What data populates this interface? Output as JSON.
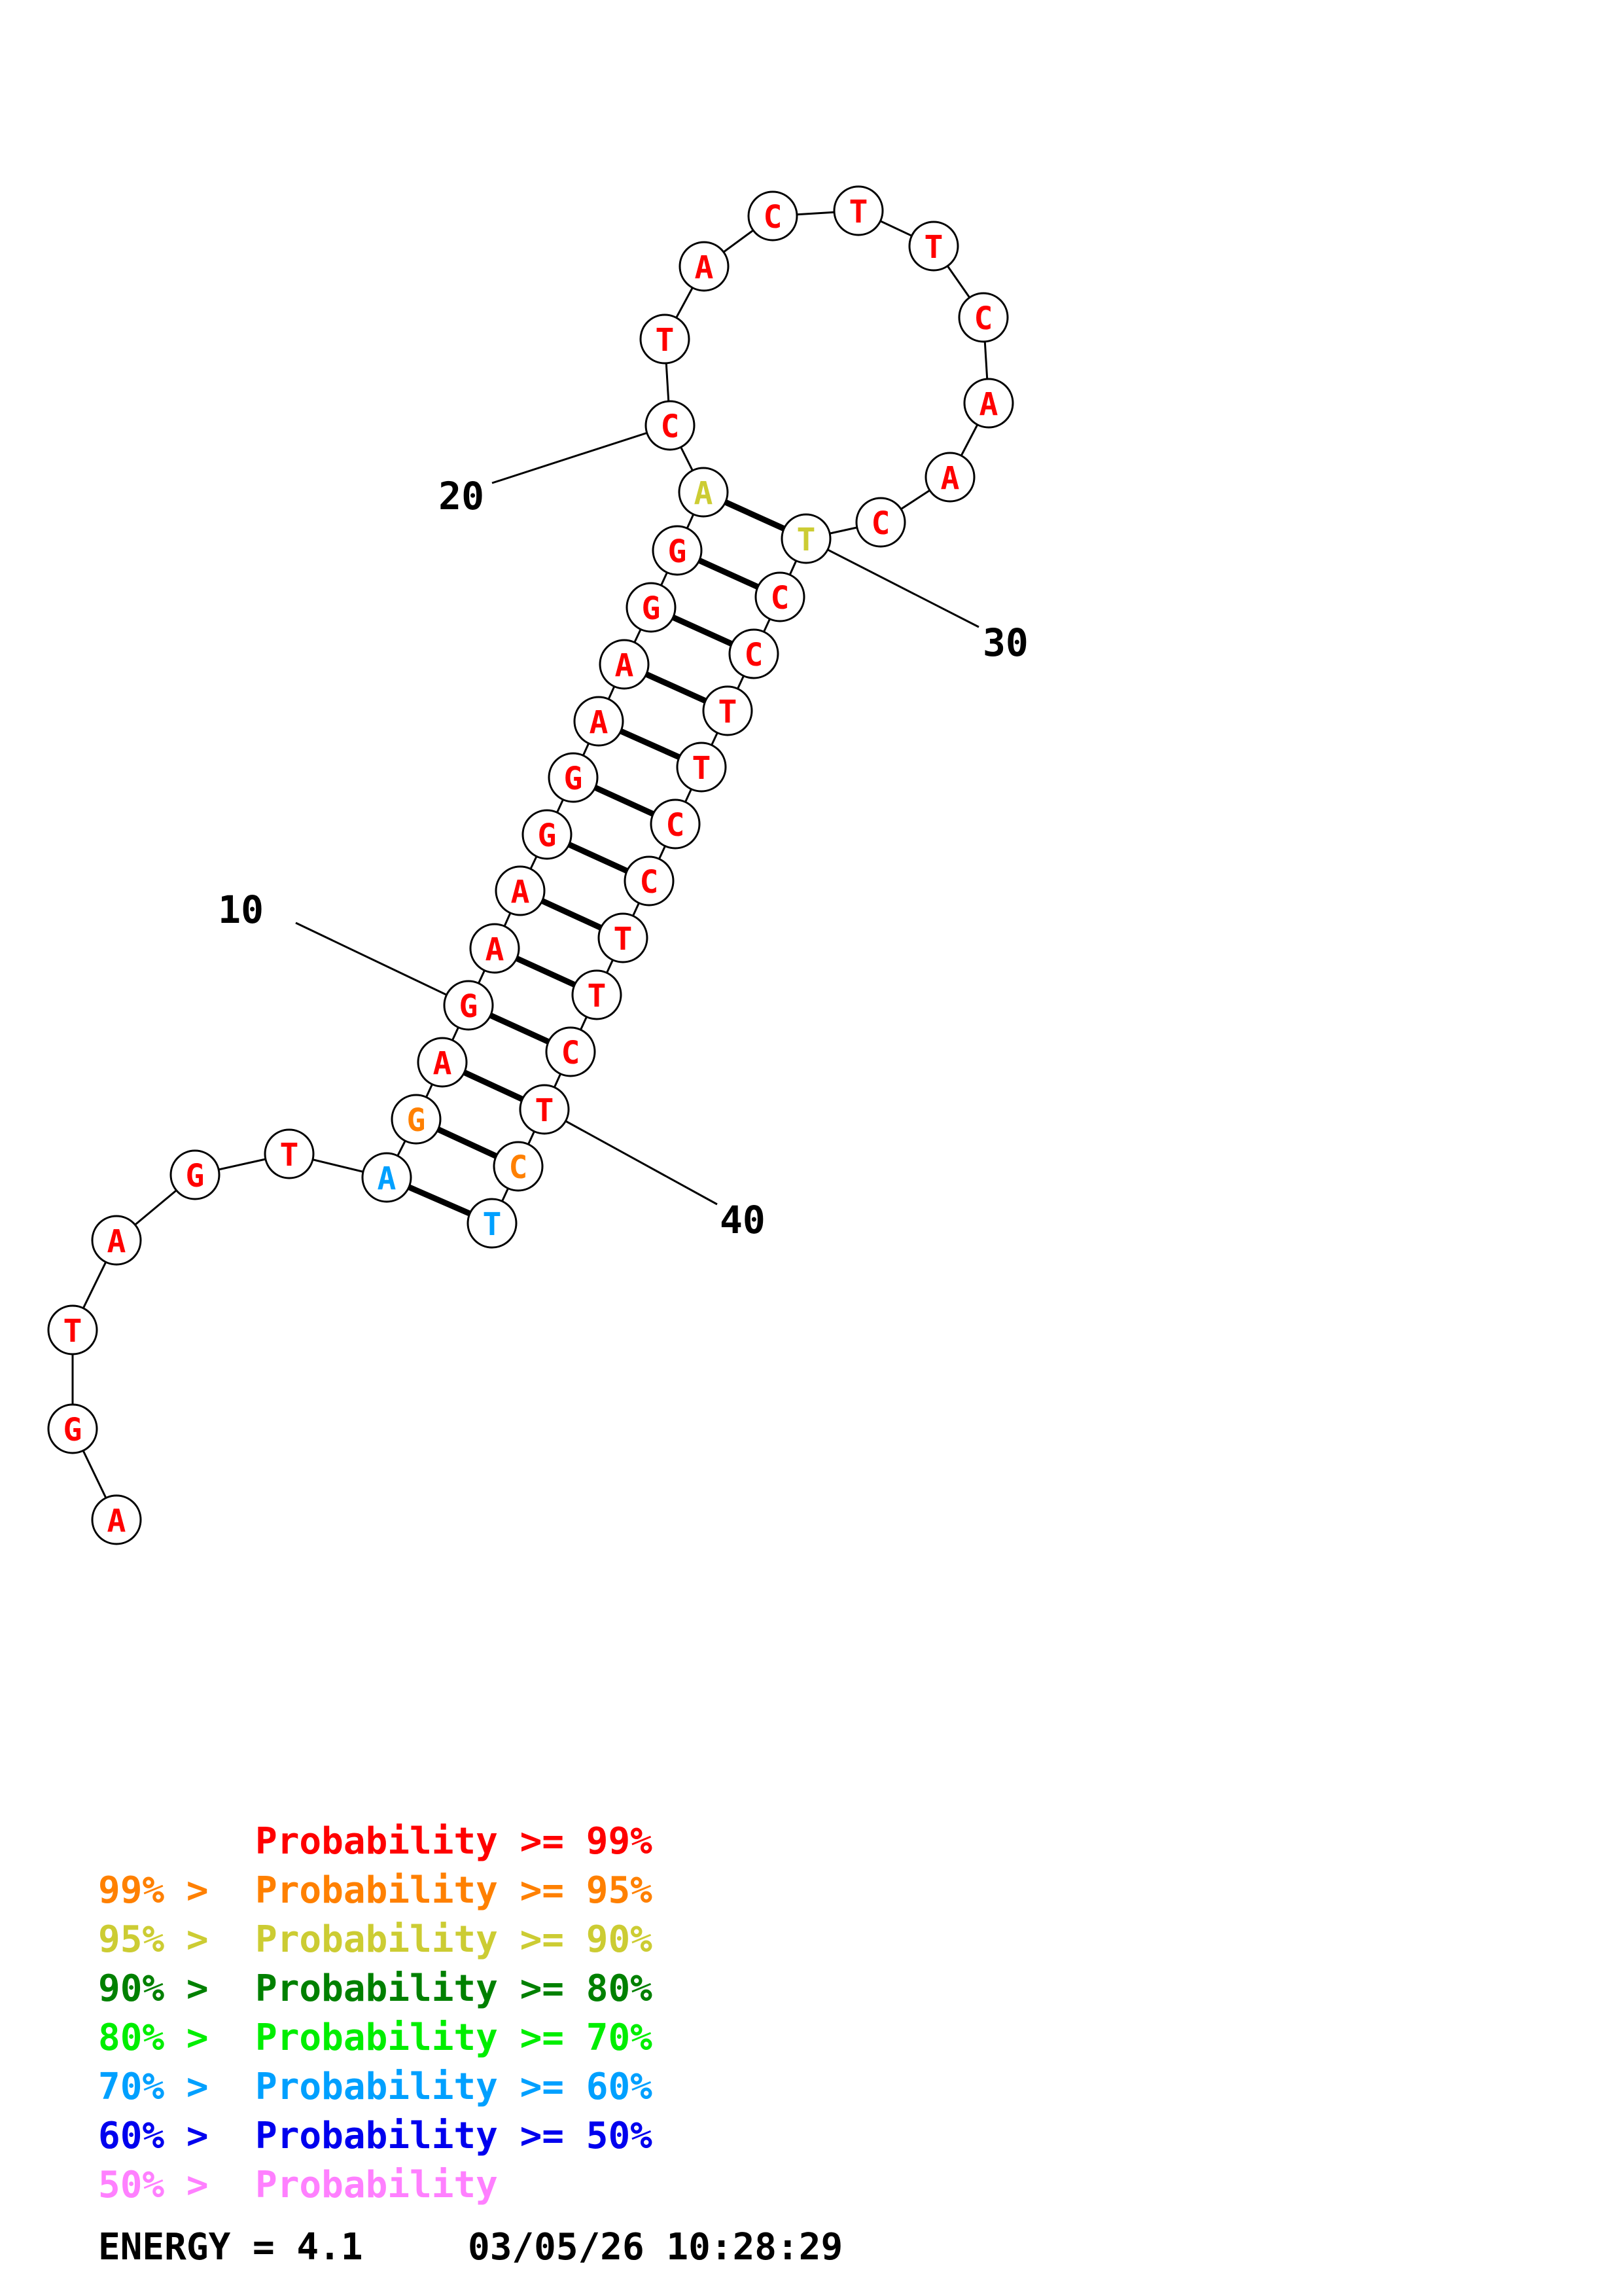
{
  "colors": {
    "p99": "#ff0000",
    "p95": "#ff8000",
    "p90": "#cccc33",
    "p80": "#008000",
    "p70": "#00ee00",
    "p60": "#00a0ff",
    "p50": "#0000ee",
    "plt50": "#ff80ff"
  },
  "sequence": [
    {
      "n": 1,
      "base": "A",
      "prob": "p99"
    },
    {
      "n": 2,
      "base": "G",
      "prob": "p99"
    },
    {
      "n": 3,
      "base": "T",
      "prob": "p99"
    },
    {
      "n": 4,
      "base": "A",
      "prob": "p99"
    },
    {
      "n": 5,
      "base": "G",
      "prob": "p99"
    },
    {
      "n": 6,
      "base": "T",
      "prob": "p99"
    },
    {
      "n": 7,
      "base": "A",
      "prob": "p60"
    },
    {
      "n": 8,
      "base": "G",
      "prob": "p95"
    },
    {
      "n": 9,
      "base": "A",
      "prob": "p99"
    },
    {
      "n": 10,
      "base": "G",
      "prob": "p99"
    },
    {
      "n": 11,
      "base": "A",
      "prob": "p99"
    },
    {
      "n": 12,
      "base": "A",
      "prob": "p99"
    },
    {
      "n": 13,
      "base": "G",
      "prob": "p99"
    },
    {
      "n": 14,
      "base": "G",
      "prob": "p99"
    },
    {
      "n": 15,
      "base": "A",
      "prob": "p99"
    },
    {
      "n": 16,
      "base": "A",
      "prob": "p99"
    },
    {
      "n": 17,
      "base": "G",
      "prob": "p99"
    },
    {
      "n": 18,
      "base": "G",
      "prob": "p99"
    },
    {
      "n": 19,
      "base": "A",
      "prob": "p90"
    },
    {
      "n": 20,
      "base": "C",
      "prob": "p99"
    },
    {
      "n": 21,
      "base": "T",
      "prob": "p99"
    },
    {
      "n": 22,
      "base": "A",
      "prob": "p99"
    },
    {
      "n": 23,
      "base": "C",
      "prob": "p99"
    },
    {
      "n": 24,
      "base": "T",
      "prob": "p99"
    },
    {
      "n": 25,
      "base": "T",
      "prob": "p99"
    },
    {
      "n": 26,
      "base": "C",
      "prob": "p99"
    },
    {
      "n": 27,
      "base": "A",
      "prob": "p99"
    },
    {
      "n": 28,
      "base": "A",
      "prob": "p99"
    },
    {
      "n": 29,
      "base": "C",
      "prob": "p99"
    },
    {
      "n": 30,
      "base": "T",
      "prob": "p90"
    },
    {
      "n": 31,
      "base": "C",
      "prob": "p99"
    },
    {
      "n": 32,
      "base": "C",
      "prob": "p99"
    },
    {
      "n": 33,
      "base": "T",
      "prob": "p99"
    },
    {
      "n": 34,
      "base": "T",
      "prob": "p99"
    },
    {
      "n": 35,
      "base": "C",
      "prob": "p99"
    },
    {
      "n": 36,
      "base": "C",
      "prob": "p99"
    },
    {
      "n": 37,
      "base": "T",
      "prob": "p99"
    },
    {
      "n": 38,
      "base": "T",
      "prob": "p99"
    },
    {
      "n": 39,
      "base": "C",
      "prob": "p99"
    },
    {
      "n": 40,
      "base": "T",
      "prob": "p99"
    },
    {
      "n": 41,
      "base": "C",
      "prob": "p95"
    },
    {
      "n": 42,
      "base": "T",
      "prob": "p60"
    }
  ],
  "pairs": [
    [
      7,
      42
    ],
    [
      8,
      41
    ],
    [
      9,
      40
    ],
    [
      10,
      39
    ],
    [
      11,
      38
    ],
    [
      12,
      37
    ],
    [
      13,
      36
    ],
    [
      14,
      35
    ],
    [
      15,
      34
    ],
    [
      16,
      33
    ],
    [
      17,
      32
    ],
    [
      18,
      31
    ],
    [
      19,
      30
    ]
  ],
  "position_labels": [
    "10",
    "20",
    "30",
    "40"
  ],
  "legend": [
    {
      "prefix": "",
      "text": "Probability >= 99%",
      "prob": "p99"
    },
    {
      "prefix": "99% > ",
      "text": "Probability >= 95%",
      "prob": "p95"
    },
    {
      "prefix": "95% > ",
      "text": "Probability >= 90%",
      "prob": "p90"
    },
    {
      "prefix": "90% > ",
      "text": "Probability >= 80%",
      "prob": "p80"
    },
    {
      "prefix": "80% > ",
      "text": "Probability >= 70%",
      "prob": "p70"
    },
    {
      "prefix": "70% > ",
      "text": "Probability >= 60%",
      "prob": "p60"
    },
    {
      "prefix": "60% > ",
      "text": "Probability >= 50%",
      "prob": "p50"
    },
    {
      "prefix": "50% > ",
      "text": "Probability",
      "prob": "plt50"
    }
  ],
  "footer": {
    "energy": "ENERGY = 4.1",
    "timestamp": "03/05/26 10:28:29"
  }
}
